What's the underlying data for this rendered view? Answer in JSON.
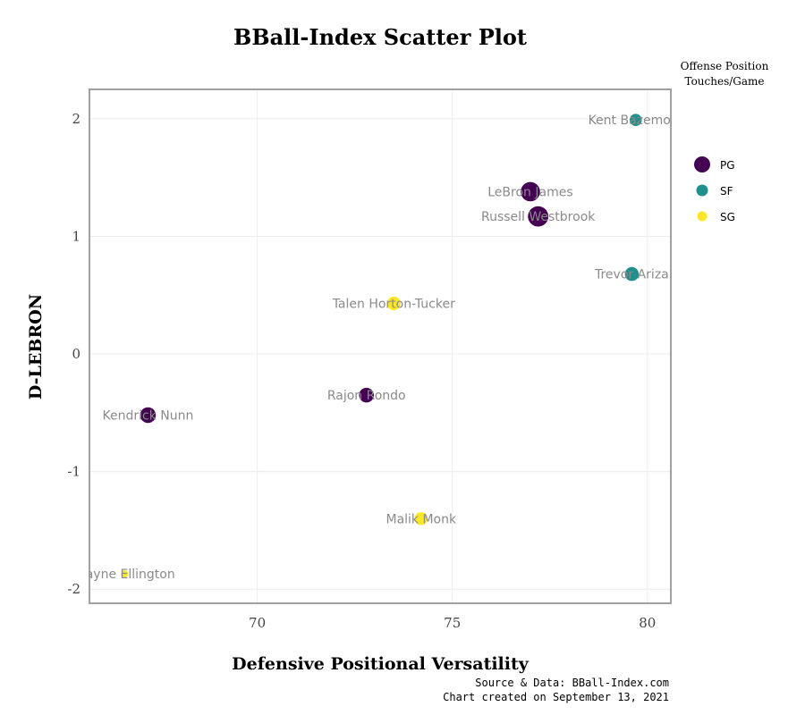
{
  "chart_data": {
    "type": "scatter",
    "title": "BBall-Index Scatter Plot",
    "xlabel": "Defensive Positional Versatility",
    "ylabel": "D-LEBRON",
    "xlim": [
      65.7,
      80.6
    ],
    "ylim": [
      -2.12,
      2.25
    ],
    "xticks": [
      70,
      75,
      80
    ],
    "yticks": [
      2,
      1,
      0,
      -1,
      -2
    ],
    "xtick_labels": [
      "70",
      "75",
      "80"
    ],
    "ytick_labels": [
      "2",
      "1",
      "0",
      "-1",
      "-2"
    ],
    "grid": true,
    "legend": {
      "title_line1": "Offense Position",
      "title_line2": "Touches/Game",
      "placement": "right",
      "entries": [
        {
          "label": "PG",
          "color": "#440154"
        },
        {
          "label": "SF",
          "color": "#21908c"
        },
        {
          "label": "SG",
          "color": "#fde725"
        }
      ]
    },
    "points": [
      {
        "name": "Kent Bazemore",
        "x": 79.7,
        "y": 1.99,
        "position": "SF",
        "touches": 22
      },
      {
        "name": "LeBron James",
        "x": 77.0,
        "y": 1.38,
        "position": "PG",
        "touches": 75
      },
      {
        "name": "Russell Westbrook",
        "x": 77.2,
        "y": 1.17,
        "position": "PG",
        "touches": 85
      },
      {
        "name": "Trevor Ariza",
        "x": 79.6,
        "y": 0.68,
        "position": "SF",
        "touches": 32
      },
      {
        "name": "Talen Horton-Tucker",
        "x": 73.5,
        "y": 0.43,
        "position": "SG",
        "touches": 30
      },
      {
        "name": "Rajon Rondo",
        "x": 72.8,
        "y": -0.35,
        "position": "PG",
        "touches": 38
      },
      {
        "name": "Kendrick Nunn",
        "x": 67.2,
        "y": -0.52,
        "position": "PG",
        "touches": 44
      },
      {
        "name": "Malik Monk",
        "x": 74.2,
        "y": -1.4,
        "position": "SG",
        "touches": 26
      },
      {
        "name": "Wayne Ellington",
        "x": 66.6,
        "y": -1.87,
        "position": "SG",
        "touches": 4
      }
    ]
  },
  "caption": {
    "line1": "Source & Data: BBall-Index.com",
    "line2": "Chart created on September 13, 2021"
  }
}
